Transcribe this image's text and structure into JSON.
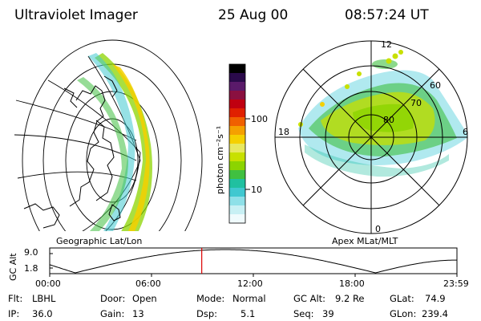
{
  "header": {
    "instrument": "Ultraviolet Imager",
    "date": "25 Aug 00",
    "time": "08:57:24 UT"
  },
  "geo_panel": {
    "label": "Geographic Lat/Lon"
  },
  "colorbar": {
    "unit_label": "photon cm⁻²s⁻¹",
    "tick_100": "100",
    "tick_10": "10",
    "colors": [
      "#000000",
      "#2a0a4a",
      "#5a1a6a",
      "#8a1040",
      "#c00010",
      "#e02000",
      "#f06000",
      "#f5a000",
      "#f5d000",
      "#e8e860",
      "#c8e000",
      "#8cd400",
      "#40c040",
      "#20c0a0",
      "#40c8d0",
      "#8ee0e8",
      "#c8f0f4",
      "#f0fbfd"
    ]
  },
  "polar_panel": {
    "label": "Apex MLat/MLT",
    "mlt_top": "12",
    "mlt_left": "18",
    "mlt_right": "6",
    "mlt_bottom": "0",
    "lat_60": "60",
    "lat_70": "70",
    "lat_80": "80"
  },
  "altitude_plot": {
    "axis_label": "GC Alt",
    "y_top": "9.0",
    "y_bottom": "1.8",
    "x_ticks": [
      "00:00",
      "06:00",
      "12:00",
      "18:00",
      "23:59"
    ],
    "current_time_hours": 8.96,
    "marker_color": "#dd0000"
  },
  "info": {
    "flt_label": "Flt:",
    "flt_value": "LBHL",
    "ip_label": "IP:",
    "ip_value": "36.0",
    "door_label": "Door:",
    "door_value": "Open",
    "gain_label": "Gain:",
    "gain_value": "13",
    "mode_label": "Mode:",
    "mode_value": "Normal",
    "dsp_label": "Dsp:",
    "dsp_value": "5.1",
    "gcalt_label": "GC Alt:",
    "gcalt_value": "9.2 Re",
    "seq_label": "Seq:",
    "seq_value": "39",
    "glat_label": "GLat:",
    "glat_value": "74.9",
    "glon_label": "GLon:",
    "glon_value": "239.4"
  }
}
